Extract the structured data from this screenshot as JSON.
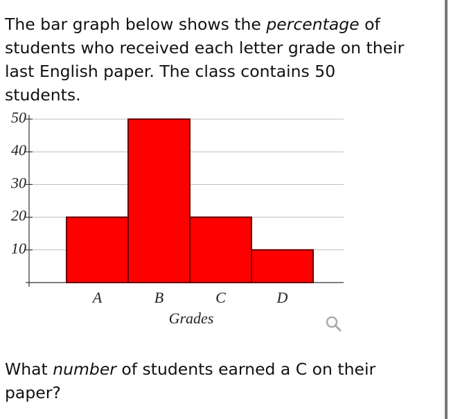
{
  "intro": [
    "The bar graph below shows the ",
    "percentage",
    " of students who received each letter grade on their last English paper. The class contains 50 students."
  ],
  "chart_data": {
    "type": "bar",
    "categories": [
      "A",
      "B",
      "C",
      "D"
    ],
    "values": [
      20,
      50,
      20,
      10
    ],
    "color": "#ff0000",
    "x_label": "Grades",
    "ylim": [
      0,
      50
    ],
    "yticks": [
      10,
      20,
      30,
      40,
      50
    ],
    "grid": true
  },
  "question": [
    "What ",
    "number",
    " of students earned a C on their paper?"
  ]
}
